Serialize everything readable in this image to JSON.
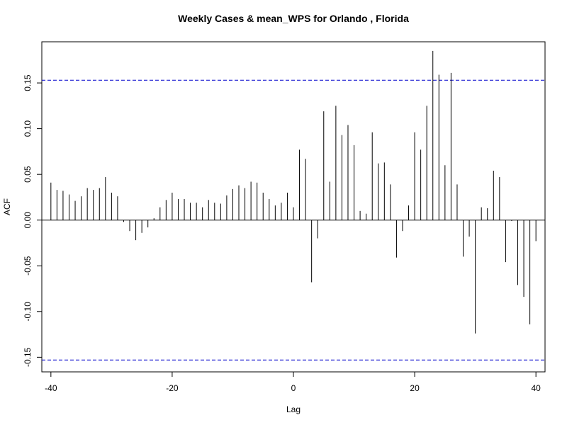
{
  "chart_data": {
    "type": "bar",
    "title": "Weekly Cases & mean_WPS for Orlando , Florida",
    "xlabel": "Lag",
    "ylabel": "ACF",
    "xlim": [
      -41.5,
      41.5
    ],
    "ylim": [
      -0.166,
      0.195
    ],
    "x_ticks": [
      -40,
      -20,
      0,
      20,
      40
    ],
    "x_tick_labels": [
      "-40",
      "-20",
      "0",
      "20",
      "40"
    ],
    "y_ticks": [
      -0.15,
      -0.1,
      -0.05,
      0.0,
      0.05,
      0.1,
      0.15
    ],
    "y_tick_labels": [
      "-0.15",
      "-0.10",
      "-0.05",
      "0.00",
      "0.05",
      "0.10",
      "0.15"
    ],
    "confidence_limit": 0.153,
    "colors": {
      "bars": "#000000",
      "ci_line": "#0000cc",
      "zero_line": "#000000"
    },
    "lags": [
      -40,
      -39,
      -38,
      -37,
      -36,
      -35,
      -34,
      -33,
      -32,
      -31,
      -30,
      -29,
      -28,
      -27,
      -26,
      -25,
      -24,
      -23,
      -22,
      -21,
      -20,
      -19,
      -18,
      -17,
      -16,
      -15,
      -14,
      -13,
      -12,
      -11,
      -10,
      -9,
      -8,
      -7,
      -6,
      -5,
      -4,
      -3,
      -2,
      -1,
      0,
      1,
      2,
      3,
      4,
      5,
      6,
      7,
      8,
      9,
      10,
      11,
      12,
      13,
      14,
      15,
      16,
      17,
      18,
      19,
      20,
      21,
      22,
      23,
      24,
      25,
      26,
      27,
      28,
      29,
      30,
      31,
      32,
      33,
      34,
      35,
      36,
      37,
      38,
      39,
      40
    ],
    "acf": [
      0.041,
      0.033,
      0.032,
      0.028,
      0.021,
      0.026,
      0.035,
      0.033,
      0.035,
      0.047,
      0.03,
      0.026,
      -0.002,
      -0.012,
      -0.022,
      -0.014,
      -0.008,
      0.002,
      0.014,
      0.022,
      0.03,
      0.023,
      0.023,
      0.019,
      0.019,
      0.014,
      0.022,
      0.019,
      0.018,
      0.027,
      0.034,
      0.038,
      0.035,
      0.042,
      0.041,
      0.03,
      0.023,
      0.016,
      0.019,
      0.03,
      0.014,
      0.077,
      0.067,
      -0.068,
      -0.02,
      0.119,
      0.042,
      0.125,
      0.093,
      0.104,
      0.082,
      0.01,
      0.007,
      0.096,
      0.062,
      0.063,
      0.039,
      -0.041,
      -0.012,
      0.016,
      0.096,
      0.077,
      0.125,
      0.185,
      0.159,
      0.06,
      0.161,
      0.039,
      -0.04,
      -0.018,
      -0.124,
      0.014,
      0.013,
      0.054,
      0.047,
      -0.046,
      -0.001,
      -0.071,
      -0.084,
      -0.114,
      -0.023
    ]
  }
}
